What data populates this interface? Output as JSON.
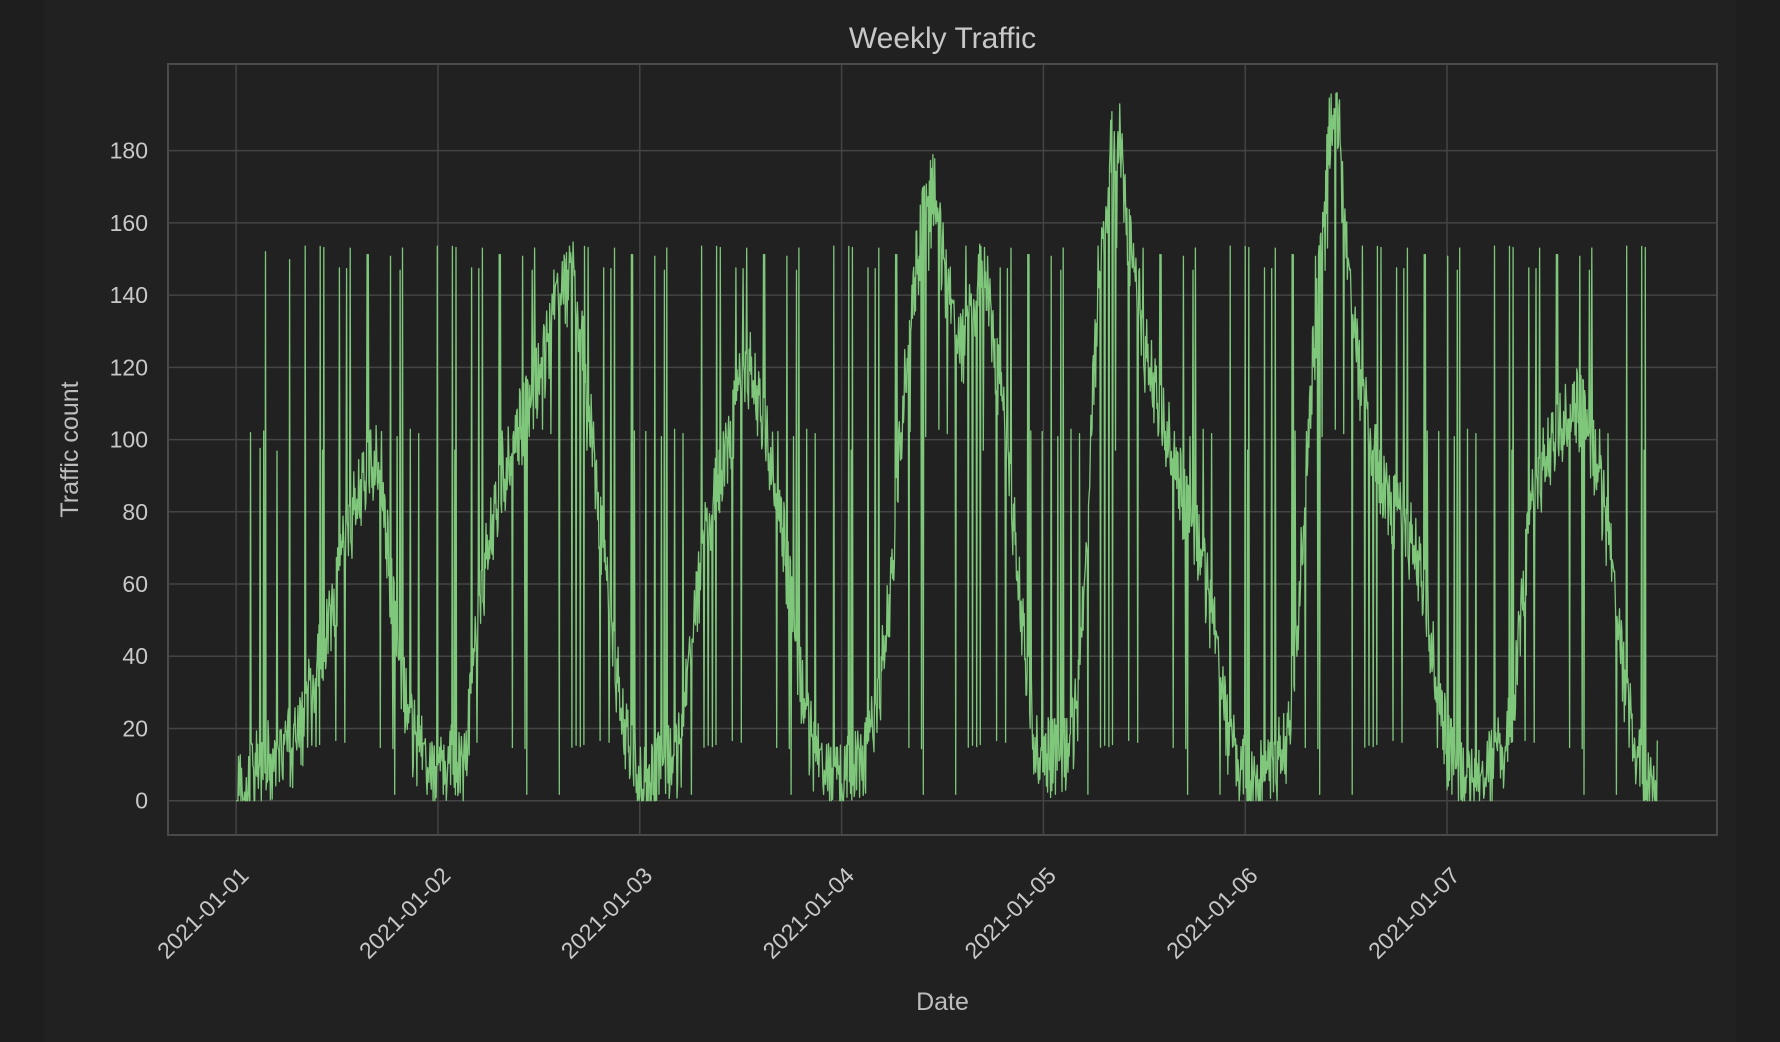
{
  "chart_data": {
    "type": "line",
    "title": "Weekly Traffic",
    "xlabel": "Date",
    "ylabel": "Traffic count",
    "grid": true,
    "legend": "none",
    "xlim": [
      "2020-12-31T15:54",
      "2021-01-08T08:06"
    ],
    "ylim": [
      -9.5,
      204
    ],
    "yticks": [
      0,
      20,
      40,
      60,
      80,
      100,
      120,
      140,
      160,
      180
    ],
    "xticks": [
      "2021-01-01",
      "2021-01-02",
      "2021-01-03",
      "2021-01-04",
      "2021-01-05",
      "2021-01-06",
      "2021-01-07"
    ],
    "highlight_tick": "2021-01-03",
    "colors": {
      "line": "#7fc77b",
      "grid": "#444444",
      "frame": "#4a4a4a",
      "highlight_tick": "#b5483d"
    },
    "series": [
      {
        "x_start": "2021-01-01T00:00",
        "x_step_hours": 1,
        "values": [
          0,
          5,
          8,
          10,
          11,
          12,
          13,
          16,
          22,
          32,
          40,
          50,
          60,
          72,
          80,
          86,
          92,
          95,
          70,
          45,
          30,
          18,
          12,
          8,
          5,
          10,
          12,
          10,
          30,
          55,
          70,
          80,
          90,
          100,
          105,
          110,
          118,
          125,
          138,
          142,
          145,
          130,
          110,
          85,
          60,
          40,
          20,
          12,
          5,
          3,
          8,
          12,
          10,
          15,
          40,
          60,
          75,
          85,
          95,
          105,
          115,
          120,
          110,
          100,
          90,
          75,
          55,
          35,
          20,
          10,
          8,
          5,
          3,
          10,
          12,
          14,
          22,
          40,
          60,
          100,
          130,
          150,
          165,
          170,
          150,
          135,
          125,
          130,
          140,
          150,
          130,
          110,
          90,
          60,
          35,
          14,
          12,
          13,
          12,
          14,
          25,
          60,
          120,
          150,
          180,
          187,
          160,
          140,
          125,
          115,
          105,
          100,
          90,
          80,
          75,
          65,
          50,
          35,
          18,
          10,
          8,
          5,
          3,
          8,
          12,
          14,
          40,
          80,
          120,
          150,
          185,
          192,
          150,
          130,
          110,
          100,
          90,
          85,
          80,
          75,
          70,
          60,
          45,
          30,
          15,
          10,
          5,
          3,
          2,
          10,
          12,
          14,
          30,
          60,
          80,
          90,
          95,
          100,
          105,
          110,
          108,
          100,
          90,
          75,
          55,
          35,
          18,
          10,
          5,
          3
        ],
        "spikes": {
          "high": [
            100,
            150
          ],
          "low": [
            0,
            14
          ]
        }
      }
    ]
  }
}
